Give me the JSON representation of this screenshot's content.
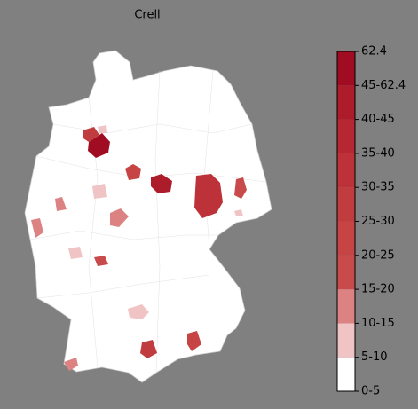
{
  "title": "Crell",
  "colorbar": {
    "labels": [
      "0-5",
      "5-10",
      "10-15",
      "15-20",
      "20-25",
      "25-30",
      "30-35",
      "35-40",
      "40-45",
      "45-62.4",
      "62.4"
    ],
    "colors": [
      "#ffffff",
      "#f0c4c4",
      "#dd8282",
      "#c94a4a",
      "#c64444",
      "#c13c3e",
      "#bc3238",
      "#b52832",
      "#ad1c2a",
      "#a00d22"
    ]
  }
}
